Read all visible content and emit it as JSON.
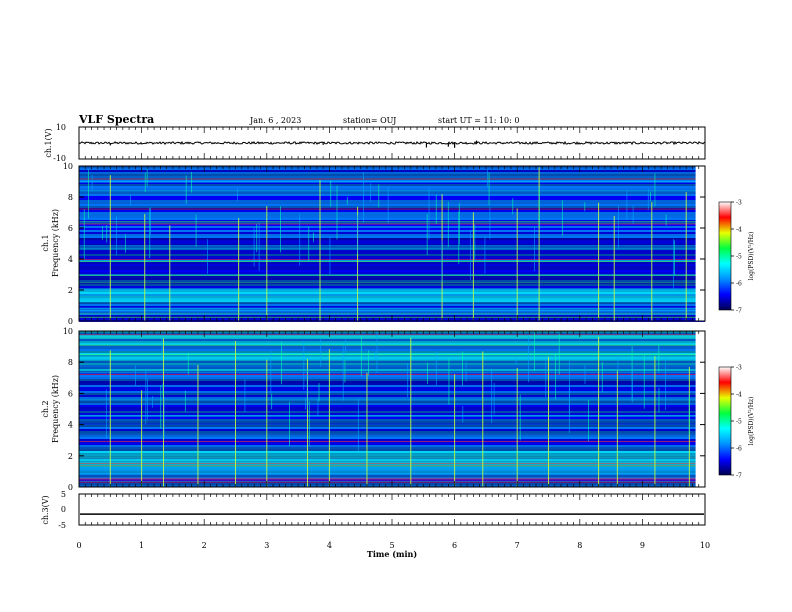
{
  "header": {
    "title": "VLF Spectra",
    "date": "Jan. 6 , 2023",
    "station": "station= OUJ",
    "start": "start UT =  11: 10: 0"
  },
  "chart_data": [
    {
      "type": "line",
      "name": "ch1-waveform",
      "ylabel": "ch.1(V)",
      "ylim": [
        -10,
        10
      ],
      "yticks": [
        "10",
        "-10"
      ],
      "xlim": [
        0,
        10
      ],
      "baseline": 0,
      "spikes": [
        {
          "x": 0.5,
          "y": -1.5
        },
        {
          "x": 3.9,
          "y": -1.2
        },
        {
          "x": 5.55,
          "y": -2.8
        },
        {
          "x": 5.9,
          "y": -2.3
        },
        {
          "x": 6.0,
          "y": -3.0
        },
        {
          "x": 6.35,
          "y": 1.5
        }
      ]
    },
    {
      "type": "heatmap",
      "name": "ch1-spectrogram",
      "ylabel": "Frequency (kHz)",
      "channel_label": "ch.1",
      "ylim": [
        0,
        10
      ],
      "yticks": [
        "0",
        "2",
        "4",
        "6",
        "8",
        "10"
      ],
      "xlim": [
        0,
        10
      ],
      "colorbar": {
        "label": "log(PSD)(V²/Hz)",
        "range": [
          -7,
          -3
        ],
        "ticks": [
          "-3",
          "-4",
          "-5",
          "-6",
          "-7"
        ]
      },
      "bright_band_khz": [
        1.2,
        2.0
      ],
      "impulse_times_min": [
        0.5,
        1.05,
        1.45,
        2.55,
        3.0,
        3.85,
        4.45,
        5.8,
        6.3,
        7.0,
        7.35,
        8.3,
        8.55,
        9.15,
        9.7
      ]
    },
    {
      "type": "heatmap",
      "name": "ch2-spectrogram",
      "ylabel": "Frequency (kHz)",
      "channel_label": "ch.2",
      "ylim": [
        0,
        10
      ],
      "yticks": [
        "0",
        "2",
        "4",
        "6",
        "8",
        "10"
      ],
      "xlim": [
        0,
        10
      ],
      "colorbar": {
        "label": "log(PSD)(V²/Hz)",
        "range": [
          -7,
          -3
        ],
        "ticks": [
          "-3",
          "-4",
          "-5",
          "-6",
          "-7"
        ]
      },
      "bright_band_khz": [
        0.8,
        1.6
      ],
      "impulse_times_min": [
        0.5,
        1.0,
        1.35,
        1.9,
        2.5,
        3.0,
        3.65,
        4.0,
        4.6,
        5.3,
        6.0,
        6.45,
        7.0,
        7.5,
        8.3,
        8.6,
        9.2,
        9.75
      ]
    },
    {
      "type": "line",
      "name": "ch3-line",
      "ylabel": "ch.3(V)",
      "ylim": [
        -5,
        5
      ],
      "yticks": [
        "5",
        "0",
        "-5"
      ],
      "xlim": [
        0,
        10
      ],
      "value": -1.5
    }
  ],
  "xaxis": {
    "label": "Time (min)",
    "ticks": [
      "0",
      "1",
      "2",
      "3",
      "4",
      "5",
      "6",
      "7",
      "8",
      "9",
      "10"
    ]
  },
  "colors": {
    "colormap": [
      "#000060",
      "#0000ff",
      "#0078ff",
      "#00dcff",
      "#00ff50",
      "#d0ff00",
      "#ff0000",
      "#ffffff"
    ]
  }
}
